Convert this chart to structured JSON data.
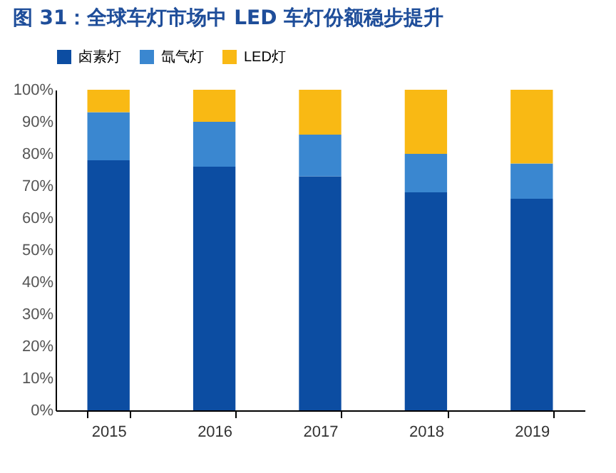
{
  "chart_data": {
    "type": "bar",
    "title": "图 31：全球车灯市场中 LED 车灯份额稳步提升",
    "stacked": true,
    "legend": "top",
    "grid": false,
    "categories": [
      "2015",
      "2016",
      "2017",
      "2018",
      "2019"
    ],
    "series": [
      {
        "name": "卤素灯",
        "color": "#0c4da2",
        "values": [
          78,
          76,
          73,
          68,
          66
        ]
      },
      {
        "name": "氙气灯",
        "color": "#3a87d0",
        "values": [
          15,
          14,
          13,
          12,
          11
        ]
      },
      {
        "name": "LED灯",
        "color": "#f9b914",
        "values": [
          7,
          10,
          14,
          20,
          23
        ]
      }
    ],
    "ylim": [
      0,
      100
    ],
    "yticks": [
      {
        "value": 0,
        "label": "0%"
      },
      {
        "value": 10,
        "label": "10%"
      },
      {
        "value": 20,
        "label": "20%"
      },
      {
        "value": 30,
        "label": "30%"
      },
      {
        "value": 40,
        "label": "40%"
      },
      {
        "value": 50,
        "label": "50%"
      },
      {
        "value": 60,
        "label": "60%"
      },
      {
        "value": 70,
        "label": "70%"
      },
      {
        "value": 80,
        "label": "80%"
      },
      {
        "value": 90,
        "label": "90%"
      },
      {
        "value": 100,
        "label": "100%"
      }
    ]
  }
}
